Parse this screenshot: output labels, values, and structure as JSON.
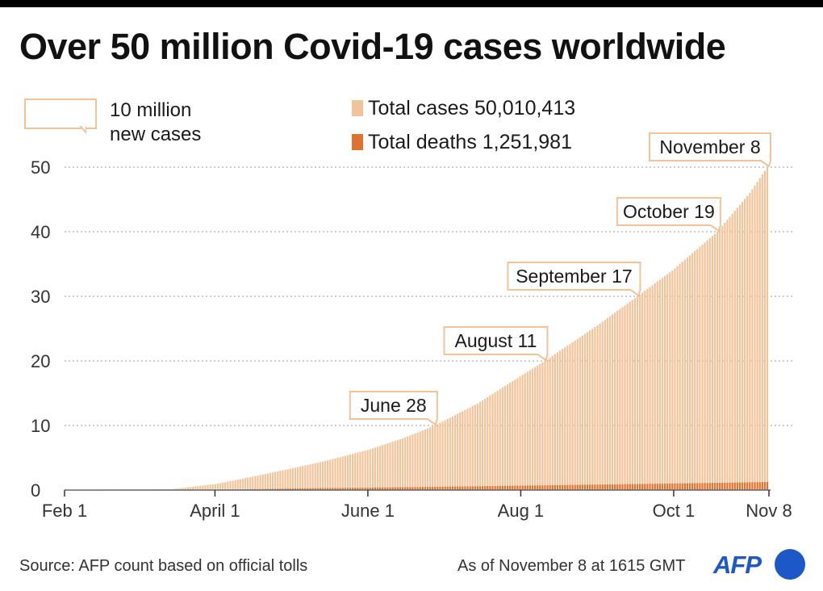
{
  "title": "Over 50 million Covid-19 cases worldwide",
  "legend": {
    "box_label": "10 million\nnew cases",
    "total_cases_label": "Total cases  50,010,413",
    "total_deaths_label": "Total deaths 1,251,981"
  },
  "footer": {
    "source": "Source: AFP count based on official tolls",
    "as_of": "As of November 8 at 1615 GMT",
    "logo": "AFP"
  },
  "colors": {
    "cases": "#f2c398",
    "deaths": "#e0722f",
    "callout_border": "#f2c398",
    "grid": "#999999",
    "brand": "#1c58c8"
  },
  "chart_data": {
    "type": "bar",
    "title": "Over 50 million Covid-19 cases worldwide",
    "ylabel": "",
    "xlabel": "",
    "ylim": [
      0,
      50
    ],
    "yticks": [
      0,
      10,
      20,
      30,
      40,
      50
    ],
    "grid": true,
    "legend_position": "top",
    "x_ticks": [
      {
        "label": "Feb 1",
        "date": "2020-02-01"
      },
      {
        "label": "April 1",
        "date": "2020-04-01"
      },
      {
        "label": "June 1",
        "date": "2020-06-01"
      },
      {
        "label": "Aug 1",
        "date": "2020-08-01"
      },
      {
        "label": "Oct 1",
        "date": "2020-10-01"
      },
      {
        "label": "Nov 8",
        "date": "2020-11-08"
      }
    ],
    "x_range": [
      "2020-02-01",
      "2020-11-08"
    ],
    "series": [
      {
        "name": "Total cases",
        "units": "million",
        "points": [
          [
            "2020-02-01",
            0.012
          ],
          [
            "2020-02-15",
            0.068
          ],
          [
            "2020-03-01",
            0.088
          ],
          [
            "2020-03-15",
            0.16
          ],
          [
            "2020-04-01",
            0.93
          ],
          [
            "2020-04-15",
            2.0
          ],
          [
            "2020-05-01",
            3.3
          ],
          [
            "2020-05-15",
            4.5
          ],
          [
            "2020-06-01",
            6.2
          ],
          [
            "2020-06-15",
            8.0
          ],
          [
            "2020-06-28",
            10.0
          ],
          [
            "2020-07-15",
            13.4
          ],
          [
            "2020-08-01",
            17.6
          ],
          [
            "2020-08-11",
            20.0
          ],
          [
            "2020-09-01",
            25.5
          ],
          [
            "2020-09-17",
            30.0
          ],
          [
            "2020-10-01",
            34.0
          ],
          [
            "2020-10-19",
            40.0
          ],
          [
            "2020-11-01",
            46.0
          ],
          [
            "2020-11-08",
            50.01
          ]
        ]
      },
      {
        "name": "Total deaths",
        "units": "million",
        "points": [
          [
            "2020-02-01",
            0.0003
          ],
          [
            "2020-03-01",
            0.003
          ],
          [
            "2020-04-01",
            0.047
          ],
          [
            "2020-05-01",
            0.23
          ],
          [
            "2020-06-01",
            0.37
          ],
          [
            "2020-07-01",
            0.51
          ],
          [
            "2020-08-01",
            0.68
          ],
          [
            "2020-09-01",
            0.85
          ],
          [
            "2020-10-01",
            1.01
          ],
          [
            "2020-11-01",
            1.2
          ],
          [
            "2020-11-08",
            1.252
          ]
        ]
      }
    ],
    "annotations": [
      {
        "label": "June 28",
        "date": "2020-06-28",
        "value": 10
      },
      {
        "label": "August 11",
        "date": "2020-08-11",
        "value": 20
      },
      {
        "label": "September 17",
        "date": "2020-09-17",
        "value": 30
      },
      {
        "label": "October 19",
        "date": "2020-10-19",
        "value": 40
      },
      {
        "label": "November 8",
        "date": "2020-11-08",
        "value": 50
      }
    ]
  }
}
